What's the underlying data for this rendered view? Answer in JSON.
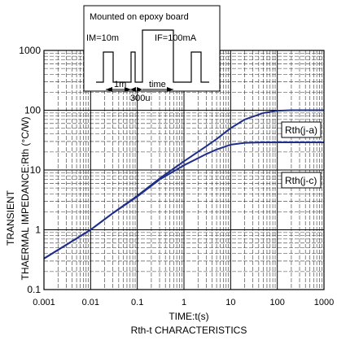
{
  "chart_data": {
    "type": "line",
    "title": "Rth-t CHARACTERISTICS",
    "xlabel": "TIME:t(s)",
    "ylabel_lines": [
      "TRANSIENT",
      "THAERMAL IMPEDANCE:Rth (°C/W)"
    ],
    "x_scale": "log",
    "y_scale": "log",
    "xlim": [
      0.001,
      1000
    ],
    "ylim": [
      0.1,
      1000
    ],
    "x_ticks": [
      0.001,
      0.01,
      0.1,
      1,
      10,
      100,
      1000
    ],
    "x_tick_labels": [
      "0.001",
      "0.01",
      "0.1",
      "1",
      "10",
      "100",
      "1000"
    ],
    "y_ticks": [
      0.1,
      1,
      10,
      100,
      1000
    ],
    "y_tick_labels": [
      "0.1",
      "1",
      "10",
      "100",
      "1000"
    ],
    "grid": true,
    "line_color": "#1f2f8a",
    "series": [
      {
        "name": "Rth(j-a)",
        "x": [
          0.001,
          0.003,
          0.01,
          0.03,
          0.1,
          0.3,
          1,
          3,
          5,
          10,
          20,
          50,
          100,
          200,
          1000
        ],
        "y": [
          0.33,
          0.56,
          1.0,
          1.9,
          3.7,
          7.2,
          14.0,
          25.0,
          33.0,
          50.0,
          70.0,
          90.0,
          98.0,
          100.0,
          100.0
        ]
      },
      {
        "name": "Rth(j-c)",
        "x": [
          0.001,
          0.003,
          0.01,
          0.03,
          0.1,
          0.3,
          1,
          3,
          5,
          10,
          20,
          50,
          100,
          1000
        ],
        "y": [
          0.33,
          0.56,
          1.0,
          1.9,
          3.6,
          6.9,
          12.0,
          18.5,
          22.0,
          26.5,
          28.5,
          29.0,
          29.0,
          29.0
        ]
      }
    ],
    "inset": {
      "title": "Mounted on epoxy board",
      "im_label": "IM=10m",
      "if_label": "IF=100mA",
      "t1_label": "1m",
      "t2_label": "300u",
      "time_label": "time"
    }
  }
}
